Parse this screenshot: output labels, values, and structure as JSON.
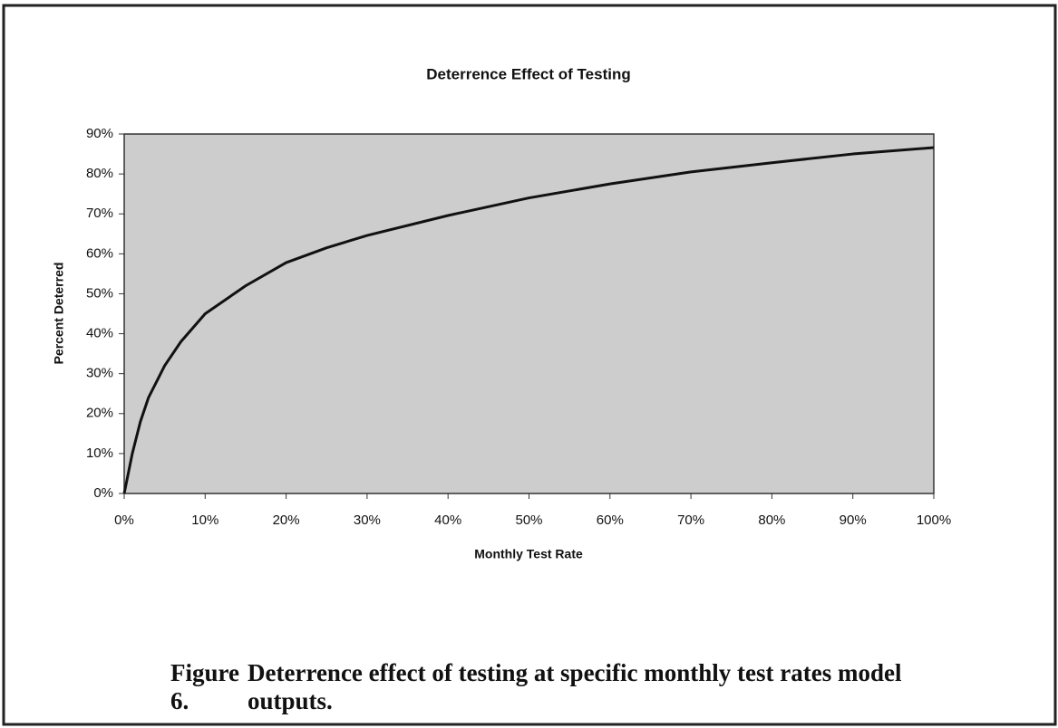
{
  "chart_data": {
    "type": "line",
    "title": "Deterrence Effect of Testing",
    "x_label": "Monthly Test Rate",
    "y_label": "Percent Deterred",
    "x": [
      0,
      1,
      2,
      3,
      5,
      7,
      10,
      15,
      20,
      25,
      30,
      40,
      50,
      60,
      70,
      80,
      90,
      100
    ],
    "series": [
      {
        "name": "Percent Deterred",
        "color": "#111111",
        "values": [
          0,
          10,
          18,
          24,
          32,
          38,
          45,
          52,
          57.8,
          61.5,
          64.6,
          69.6,
          74,
          77.5,
          80.5,
          82.8,
          85,
          86.6
        ]
      }
    ],
    "xlim": [
      0,
      100
    ],
    "xticks": [
      {
        "value": 0,
        "label": "0%"
      },
      {
        "value": 10,
        "label": "10%"
      },
      {
        "value": 20,
        "label": "20%"
      },
      {
        "value": 30,
        "label": "30%"
      },
      {
        "value": 40,
        "label": "40%"
      },
      {
        "value": 50,
        "label": "50%"
      },
      {
        "value": 60,
        "label": "60%"
      },
      {
        "value": 70,
        "label": "70%"
      },
      {
        "value": 80,
        "label": "80%"
      },
      {
        "value": 90,
        "label": "90%"
      },
      {
        "value": 100,
        "label": "100%"
      }
    ],
    "ylim": [
      0,
      90
    ],
    "yticks": [
      {
        "value": 0,
        "label": "0%"
      },
      {
        "value": 10,
        "label": "10%"
      },
      {
        "value": 20,
        "label": "20%"
      },
      {
        "value": 30,
        "label": "30%"
      },
      {
        "value": 40,
        "label": "40%"
      },
      {
        "value": 50,
        "label": "50%"
      },
      {
        "value": 60,
        "label": "60%"
      },
      {
        "value": 70,
        "label": "70%"
      },
      {
        "value": 80,
        "label": "80%"
      },
      {
        "value": 90,
        "label": "90%"
      }
    ],
    "grid": false
  },
  "caption": {
    "label": "Figure 6.",
    "text": "Deterrence effect of testing at specific monthly test rates model outputs."
  }
}
